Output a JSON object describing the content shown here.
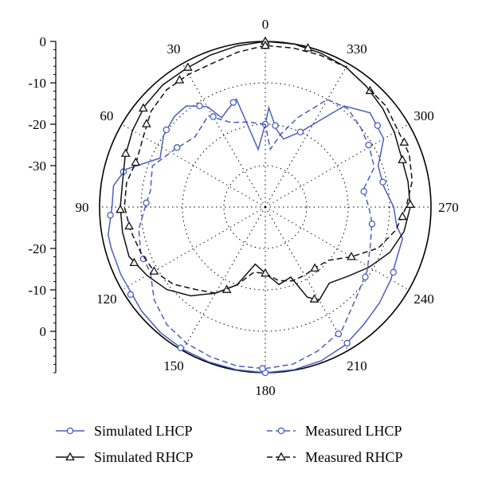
{
  "chart_data": {
    "type": "polar",
    "unit_note": "",
    "radial_axis": {
      "min": -40,
      "max": 0,
      "tick_labels_upper": [
        "0",
        "-10",
        "-20",
        "-30"
      ],
      "tick_labels_lower": [
        "-20",
        "-10",
        "0"
      ],
      "grid_values": [
        -30,
        -20,
        -10,
        0
      ]
    },
    "angular_axis": {
      "direction": "clockwise from top, labels increase counter-clockwise",
      "tick_labels": [
        "0",
        "30",
        "60",
        "90",
        "120",
        "150",
        "180",
        "210",
        "240",
        "270",
        "300",
        "330"
      ],
      "grid_step_deg": 30
    },
    "grid": true,
    "legend": {
      "placement": "bottom",
      "entries": [
        "Simulated LHCP",
        "Measured LHCP",
        "Simulated RHCP",
        "Measured RHCP"
      ]
    },
    "colors": {
      "lhcp": "#4a5fbf",
      "rhcp": "#111111"
    },
    "series": [
      {
        "name": "Simulated LHCP",
        "color": "#4a5fbf",
        "dash": "solid",
        "marker": "circle",
        "points": [
          [
            0,
            -20
          ],
          [
            7,
            -26
          ],
          [
            15,
            -13
          ],
          [
            22,
            -15
          ],
          [
            26,
            -16
          ],
          [
            30,
            -12
          ],
          [
            38,
            -9
          ],
          [
            45,
            -9
          ],
          [
            55,
            -10
          ],
          [
            65,
            -12
          ],
          [
            75,
            -5
          ],
          [
            82,
            -3
          ],
          [
            90,
            -3
          ],
          [
            100,
            -1.5
          ],
          [
            105,
            -1.5
          ],
          [
            115,
            -1.5
          ],
          [
            130,
            -1
          ],
          [
            140,
            -0.5
          ],
          [
            150,
            -0.3
          ],
          [
            160,
            -0.2
          ],
          [
            170,
            -0.1
          ],
          [
            180,
            0
          ],
          [
            190,
            -0.1
          ],
          [
            200,
            -0.5
          ],
          [
            210,
            -1.5
          ],
          [
            220,
            -3
          ],
          [
            230,
            -4
          ],
          [
            240,
            -5
          ],
          [
            250,
            -6
          ],
          [
            257,
            -6
          ],
          [
            262,
            -8
          ],
          [
            270,
            -9
          ],
          [
            280,
            -11
          ],
          [
            290,
            -11
          ],
          [
            300,
            -7
          ],
          [
            312,
            -6
          ],
          [
            322,
            -9
          ],
          [
            335,
            -20
          ],
          [
            345,
            -23
          ],
          [
            352,
            -21
          ],
          [
            358,
            -16
          ],
          [
            0,
            -20
          ]
        ],
        "marker_angles": [
          0,
          17,
          33,
          52,
          76,
          93,
          123,
          149,
          180,
          211,
          243,
          282,
          306,
          335,
          353
        ]
      },
      {
        "name": "Measured LHCP",
        "color": "#4a5fbf",
        "dash": "dashed",
        "marker": "circle",
        "points": [
          [
            0,
            -20
          ],
          [
            12,
            -19
          ],
          [
            22,
            -18
          ],
          [
            32,
            -14
          ],
          [
            45,
            -16
          ],
          [
            58,
            -14
          ],
          [
            70,
            -11
          ],
          [
            82,
            -12
          ],
          [
            90,
            -11
          ],
          [
            100,
            -9
          ],
          [
            110,
            -8
          ],
          [
            120,
            -8
          ],
          [
            130,
            -5
          ],
          [
            140,
            -3
          ],
          [
            150,
            -2
          ],
          [
            160,
            -1.5
          ],
          [
            170,
            -1
          ],
          [
            180,
            -1
          ],
          [
            190,
            -1.5
          ],
          [
            200,
            -3
          ],
          [
            212,
            -5
          ],
          [
            225,
            -9
          ],
          [
            238,
            -11
          ],
          [
            250,
            -13
          ],
          [
            262,
            -14
          ],
          [
            270,
            -15
          ],
          [
            280,
            -16
          ],
          [
            290,
            -12
          ],
          [
            300,
            -11
          ],
          [
            310,
            -10
          ],
          [
            320,
            -9
          ],
          [
            330,
            -10
          ],
          [
            340,
            -17
          ],
          [
            348,
            -22
          ],
          [
            355,
            -26
          ],
          [
            0,
            -20
          ]
        ],
        "marker_angles": [
          30,
          56,
          88,
          113,
          179,
          210,
          235,
          261,
          279,
          301
        ]
      },
      {
        "name": "Simulated RHCP",
        "color": "#111111",
        "dash": "solid",
        "marker": "triangle",
        "points": [
          [
            0,
            0
          ],
          [
            10,
            -0.5
          ],
          [
            20,
            -1
          ],
          [
            30,
            -1.5
          ],
          [
            40,
            -1.5
          ],
          [
            50,
            -2
          ],
          [
            60,
            -3
          ],
          [
            70,
            -4
          ],
          [
            80,
            -5
          ],
          [
            90,
            -5
          ],
          [
            100,
            -5
          ],
          [
            110,
            -5
          ],
          [
            120,
            -7
          ],
          [
            130,
            -9
          ],
          [
            140,
            -12
          ],
          [
            150,
            -16
          ],
          [
            160,
            -20
          ],
          [
            170,
            -26
          ],
          [
            180,
            -24
          ],
          [
            190,
            -21
          ],
          [
            200,
            -22
          ],
          [
            205,
            -16
          ],
          [
            210,
            -14
          ],
          [
            220,
            -16
          ],
          [
            230,
            -14
          ],
          [
            240,
            -11
          ],
          [
            250,
            -8
          ],
          [
            260,
            -6
          ],
          [
            270,
            -5
          ],
          [
            280,
            -5
          ],
          [
            290,
            -5
          ],
          [
            300,
            -4
          ],
          [
            310,
            -3
          ],
          [
            320,
            -2
          ],
          [
            330,
            -1
          ],
          [
            340,
            -0.5
          ],
          [
            350,
            0
          ],
          [
            0,
            0
          ]
        ],
        "marker_angles": [
          0,
          29,
          51,
          69,
          91,
          113,
          155,
          208,
          271,
          289,
          318,
          345
        ]
      },
      {
        "name": "Measured RHCP",
        "color": "#111111",
        "dash": "dashed",
        "marker": "triangle",
        "points": [
          [
            0,
            -1
          ],
          [
            10,
            -2
          ],
          [
            20,
            -3
          ],
          [
            30,
            -3
          ],
          [
            40,
            -3
          ],
          [
            50,
            -4
          ],
          [
            60,
            -6
          ],
          [
            70,
            -7
          ],
          [
            80,
            -6
          ],
          [
            90,
            -6
          ],
          [
            100,
            -7
          ],
          [
            110,
            -8
          ],
          [
            120,
            -9
          ],
          [
            130,
            -11
          ],
          [
            140,
            -14
          ],
          [
            150,
            -16
          ],
          [
            160,
            -20
          ],
          [
            170,
            -24
          ],
          [
            180,
            -24
          ],
          [
            190,
            -22
          ],
          [
            200,
            -21
          ],
          [
            210,
            -21
          ],
          [
            220,
            -21
          ],
          [
            230,
            -20
          ],
          [
            240,
            -16
          ],
          [
            250,
            -11
          ],
          [
            260,
            -8
          ],
          [
            270,
            -6
          ],
          [
            280,
            -4
          ],
          [
            290,
            -3
          ],
          [
            300,
            -3
          ],
          [
            310,
            -2
          ],
          [
            320,
            -2
          ],
          [
            330,
            -1
          ],
          [
            340,
            -1
          ],
          [
            350,
            -1
          ],
          [
            0,
            -1
          ]
        ],
        "marker_angles": [
          0,
          34,
          55,
          71,
          98,
          120,
          180,
          219,
          240,
          266,
          295
        ]
      }
    ]
  }
}
